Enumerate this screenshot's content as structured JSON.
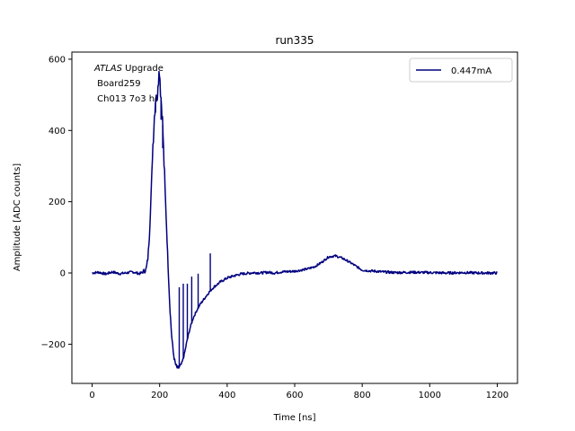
{
  "chart_data": {
    "type": "line",
    "title": "run335",
    "xlabel": "Time [ns]",
    "ylabel": "Amplitude [ADC counts]",
    "xlim": [
      -60,
      1260
    ],
    "ylim": [
      -310,
      620
    ],
    "xticks": [
      0,
      200,
      400,
      600,
      800,
      1000,
      1200
    ],
    "yticks": [
      -200,
      0,
      200,
      400,
      600
    ],
    "xtick_labels": [
      "0",
      "200",
      "400",
      "600",
      "800",
      "1000",
      "1200"
    ],
    "ytick_labels": [
      "−200",
      "0",
      "200",
      "400",
      "600"
    ],
    "grid": false,
    "legend_position": "top-right",
    "annotation": {
      "italic": "ATLAS",
      "rest": " Upgrade",
      "line2": " Board259",
      "line3": " Ch013 7o3 hi"
    },
    "series": [
      {
        "name": "0.447mA",
        "color": "#00007f",
        "x": [
          0,
          20,
          40,
          60,
          80,
          100,
          120,
          140,
          150,
          160,
          165,
          170,
          175,
          180,
          185,
          188,
          190,
          192,
          195,
          198,
          200,
          202,
          205,
          208,
          210,
          212,
          215,
          220,
          225,
          230,
          235,
          240,
          245,
          250,
          255,
          260,
          265,
          270,
          275,
          280,
          290,
          300,
          310,
          320,
          330,
          340,
          350,
          360,
          380,
          400,
          420,
          440,
          460,
          480,
          500,
          520,
          540,
          560,
          580,
          600,
          620,
          640,
          660,
          680,
          700,
          720,
          740,
          760,
          780,
          800,
          820,
          840,
          860,
          880,
          900,
          950,
          1000,
          1050,
          1100,
          1150,
          1200
        ],
        "y": [
          0,
          2,
          -3,
          3,
          -2,
          0,
          3,
          -2,
          2,
          10,
          40,
          110,
          230,
          360,
          450,
          490,
          520,
          470,
          540,
          560,
          575,
          520,
          480,
          440,
          390,
          330,
          260,
          140,
          20,
          -90,
          -170,
          -220,
          -250,
          -265,
          -268,
          -262,
          -255,
          -240,
          -220,
          -195,
          -155,
          -125,
          -105,
          -88,
          -75,
          -62,
          -50,
          -40,
          -25,
          -14,
          -8,
          -3,
          -1,
          1,
          0,
          2,
          0,
          3,
          4,
          5,
          8,
          12,
          18,
          30,
          45,
          48,
          42,
          32,
          20,
          8,
          6,
          5,
          3,
          2,
          1,
          2,
          1,
          0,
          1,
          0,
          0
        ]
      }
    ]
  }
}
